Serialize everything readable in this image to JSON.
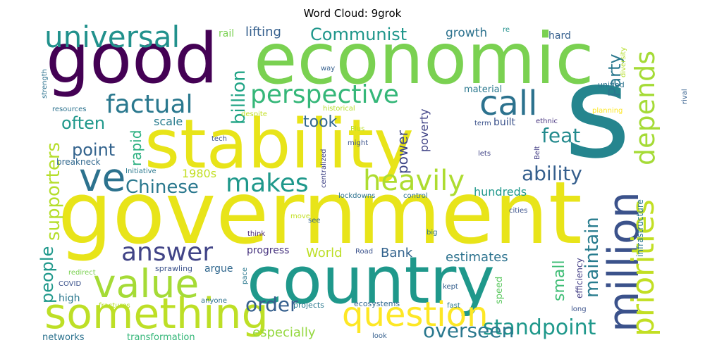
{
  "chart_data": {
    "type": "wordcloud",
    "title": "Word Cloud: 9grok",
    "words": [
      {
        "text": "government",
        "weight": 1.0,
        "color": "#e8e419"
      },
      {
        "text": "stability",
        "weight": 0.95,
        "color": "#e8e419"
      },
      {
        "text": "economic",
        "weight": 0.92,
        "color": "#7ad151"
      },
      {
        "text": "good",
        "weight": 0.85,
        "color": "#440154"
      },
      {
        "text": "s",
        "weight": 0.88,
        "color": "#25858e"
      },
      {
        "text": "country",
        "weight": 0.8,
        "color": "#1f988b"
      },
      {
        "text": "something",
        "weight": 0.6,
        "color": "#bddf26"
      },
      {
        "text": "million",
        "weight": 0.6,
        "color": "#3b528b"
      },
      {
        "text": "ve",
        "weight": 0.55,
        "color": "#2c728e"
      },
      {
        "text": "value",
        "weight": 0.55,
        "color": "#a5db36"
      },
      {
        "text": "question",
        "weight": 0.5,
        "color": "#fde725"
      },
      {
        "text": "universal",
        "weight": 0.5,
        "color": "#21918c"
      },
      {
        "text": "call",
        "weight": 0.5,
        "color": "#2c728e"
      },
      {
        "text": "priorities",
        "weight": 0.5,
        "color": "#c2df23"
      },
      {
        "text": "heavily",
        "weight": 0.45,
        "color": "#addc30"
      },
      {
        "text": "perspective",
        "weight": 0.45,
        "color": "#35b779"
      },
      {
        "text": "factual",
        "weight": 0.45,
        "color": "#2a788e"
      },
      {
        "text": "depends",
        "weight": 0.42,
        "color": "#a5db36"
      },
      {
        "text": "answer",
        "weight": 0.4,
        "color": "#414487"
      },
      {
        "text": "makes",
        "weight": 0.4,
        "color": "#1f988b"
      },
      {
        "text": "standpoint",
        "weight": 0.35,
        "color": "#1f988b"
      },
      {
        "text": "overseen",
        "weight": 0.33,
        "color": "#2a788e"
      },
      {
        "text": "maintain",
        "weight": 0.33,
        "color": "#287c8e"
      },
      {
        "text": "ability",
        "weight": 0.33,
        "color": "#355f8d"
      },
      {
        "text": "Chinese",
        "weight": 0.32,
        "color": "#2a788e"
      },
      {
        "text": "order",
        "weight": 0.32,
        "color": "#355f8d"
      },
      {
        "text": "feat",
        "weight": 0.32,
        "color": "#238a8d"
      },
      {
        "text": "supporters",
        "weight": 0.3,
        "color": "#b5de2b"
      },
      {
        "text": "billion",
        "weight": 0.3,
        "color": "#20a486"
      },
      {
        "text": "Party",
        "weight": 0.3,
        "color": "#2a788e"
      },
      {
        "text": "Communist",
        "weight": 0.3,
        "color": "#1f968b"
      },
      {
        "text": "point",
        "weight": 0.3,
        "color": "#33638d"
      },
      {
        "text": "often",
        "weight": 0.3,
        "color": "#1f988b"
      },
      {
        "text": "people",
        "weight": 0.28,
        "color": "#1f988b"
      },
      {
        "text": "small",
        "weight": 0.28,
        "color": "#3dbc74"
      },
      {
        "text": "took",
        "weight": 0.26,
        "color": "#31688e"
      },
      {
        "text": "rapid",
        "weight": 0.24,
        "color": "#29af7f"
      },
      {
        "text": "power",
        "weight": 0.24,
        "color": "#3f4788"
      },
      {
        "text": "especially",
        "weight": 0.22,
        "color": "#95d840"
      },
      {
        "text": "estimates",
        "weight": 0.22,
        "color": "#2c728e"
      },
      {
        "text": "World",
        "weight": 0.2,
        "color": "#bddf26"
      },
      {
        "text": "Bank",
        "weight": 0.2,
        "color": "#33638d"
      },
      {
        "text": "hundreds",
        "weight": 0.2,
        "color": "#1f988b"
      },
      {
        "text": "lifting",
        "weight": 0.2,
        "color": "#355f8d"
      },
      {
        "text": "growth",
        "weight": 0.2,
        "color": "#2c728e"
      },
      {
        "text": "scale",
        "weight": 0.2,
        "color": "#287c8e"
      },
      {
        "text": "poverty",
        "weight": 0.18,
        "color": "#414487"
      },
      {
        "text": "1980s",
        "weight": 0.18,
        "color": "#c2df23"
      },
      {
        "text": "progress",
        "weight": 0.17,
        "color": "#46337e"
      },
      {
        "text": "argue",
        "weight": 0.16,
        "color": "#31688e"
      },
      {
        "text": "high",
        "weight": 0.16,
        "color": "#2a788e"
      },
      {
        "text": "material",
        "weight": 0.15,
        "color": "#2a788e"
      },
      {
        "text": "built",
        "weight": 0.15,
        "color": "#3b528b"
      },
      {
        "text": "rail",
        "weight": 0.15,
        "color": "#7ad151"
      },
      {
        "text": "hard",
        "weight": 0.15,
        "color": "#355f8d"
      },
      {
        "text": "breakneck",
        "weight": 0.14,
        "color": "#31688e"
      },
      {
        "text": "sprawling",
        "weight": 0.14,
        "color": "#3b528b"
      },
      {
        "text": "transformation",
        "weight": 0.14,
        "color": "#35b779"
      },
      {
        "text": "networks",
        "weight": 0.14,
        "color": "#2c728e"
      },
      {
        "text": "speed",
        "weight": 0.14,
        "color": "#5ec962"
      },
      {
        "text": "efficiency",
        "weight": 0.13,
        "color": "#433e85"
      },
      {
        "text": "infrastructure",
        "weight": 0.13,
        "color": "#2a788e"
      },
      {
        "text": "projects",
        "weight": 0.13,
        "color": "#2a788e"
      },
      {
        "text": "ecosystems",
        "weight": 0.13,
        "color": "#31688e"
      },
      {
        "text": "unified",
        "weight": 0.12,
        "color": "#2c728e"
      },
      {
        "text": "diversity",
        "weight": 0.12,
        "color": "#b5de2b"
      },
      {
        "text": "planning",
        "weight": 0.12,
        "color": "#fde725"
      },
      {
        "text": "rival",
        "weight": 0.12,
        "color": "#355f8d"
      },
      {
        "text": "strength",
        "weight": 0.12,
        "color": "#2c728e"
      },
      {
        "text": "resources",
        "weight": 0.12,
        "color": "#2c728e"
      },
      {
        "text": "tech",
        "weight": 0.12,
        "color": "#3b528b"
      },
      {
        "text": "Initiative",
        "weight": 0.12,
        "color": "#2a788e"
      },
      {
        "text": "historical",
        "weight": 0.12,
        "color": "#b5de2b"
      },
      {
        "text": "despite",
        "weight": 0.12,
        "color": "#c2df23"
      },
      {
        "text": "centralized",
        "weight": 0.12,
        "color": "#414487"
      },
      {
        "text": "Plus",
        "weight": 0.12,
        "color": "#bddf26"
      },
      {
        "text": "term",
        "weight": 0.12,
        "color": "#3b528b"
      },
      {
        "text": "ethnic",
        "weight": 0.12,
        "color": "#46337e"
      },
      {
        "text": "Belt",
        "weight": 0.12,
        "color": "#433e85"
      },
      {
        "text": "lets",
        "weight": 0.12,
        "color": "#414487"
      },
      {
        "text": "might",
        "weight": 0.12,
        "color": "#3b528b"
      },
      {
        "text": "way",
        "weight": 0.12,
        "color": "#355f8d"
      },
      {
        "text": "re",
        "weight": 0.12,
        "color": "#21918c"
      },
      {
        "text": "lockdowns",
        "weight": 0.12,
        "color": "#2c728e"
      },
      {
        "text": "control",
        "weight": 0.12,
        "color": "#2c728e"
      },
      {
        "text": "cities",
        "weight": 0.12,
        "color": "#3b528b"
      },
      {
        "text": "move",
        "weight": 0.12,
        "color": "#c2df23"
      },
      {
        "text": "see",
        "weight": 0.12,
        "color": "#33638d"
      },
      {
        "text": "think",
        "weight": 0.12,
        "color": "#482677"
      },
      {
        "text": "big",
        "weight": 0.12,
        "color": "#2c728e"
      },
      {
        "text": "Road",
        "weight": 0.12,
        "color": "#3b528b"
      },
      {
        "text": "redirect",
        "weight": 0.12,
        "color": "#7ad151"
      },
      {
        "text": "COVID",
        "weight": 0.12,
        "color": "#3b528b"
      },
      {
        "text": "fractures",
        "weight": 0.12,
        "color": "#b5de2b"
      },
      {
        "text": "anyone",
        "weight": 0.12,
        "color": "#2c728e"
      },
      {
        "text": "pace",
        "weight": 0.12,
        "color": "#2a788e"
      },
      {
        "text": "kept",
        "weight": 0.12,
        "color": "#355f8d"
      },
      {
        "text": "fast",
        "weight": 0.12,
        "color": "#2a788e"
      },
      {
        "text": "long",
        "weight": 0.12,
        "color": "#3b528b"
      },
      {
        "text": "look",
        "weight": 0.12,
        "color": "#355f8d"
      }
    ]
  }
}
